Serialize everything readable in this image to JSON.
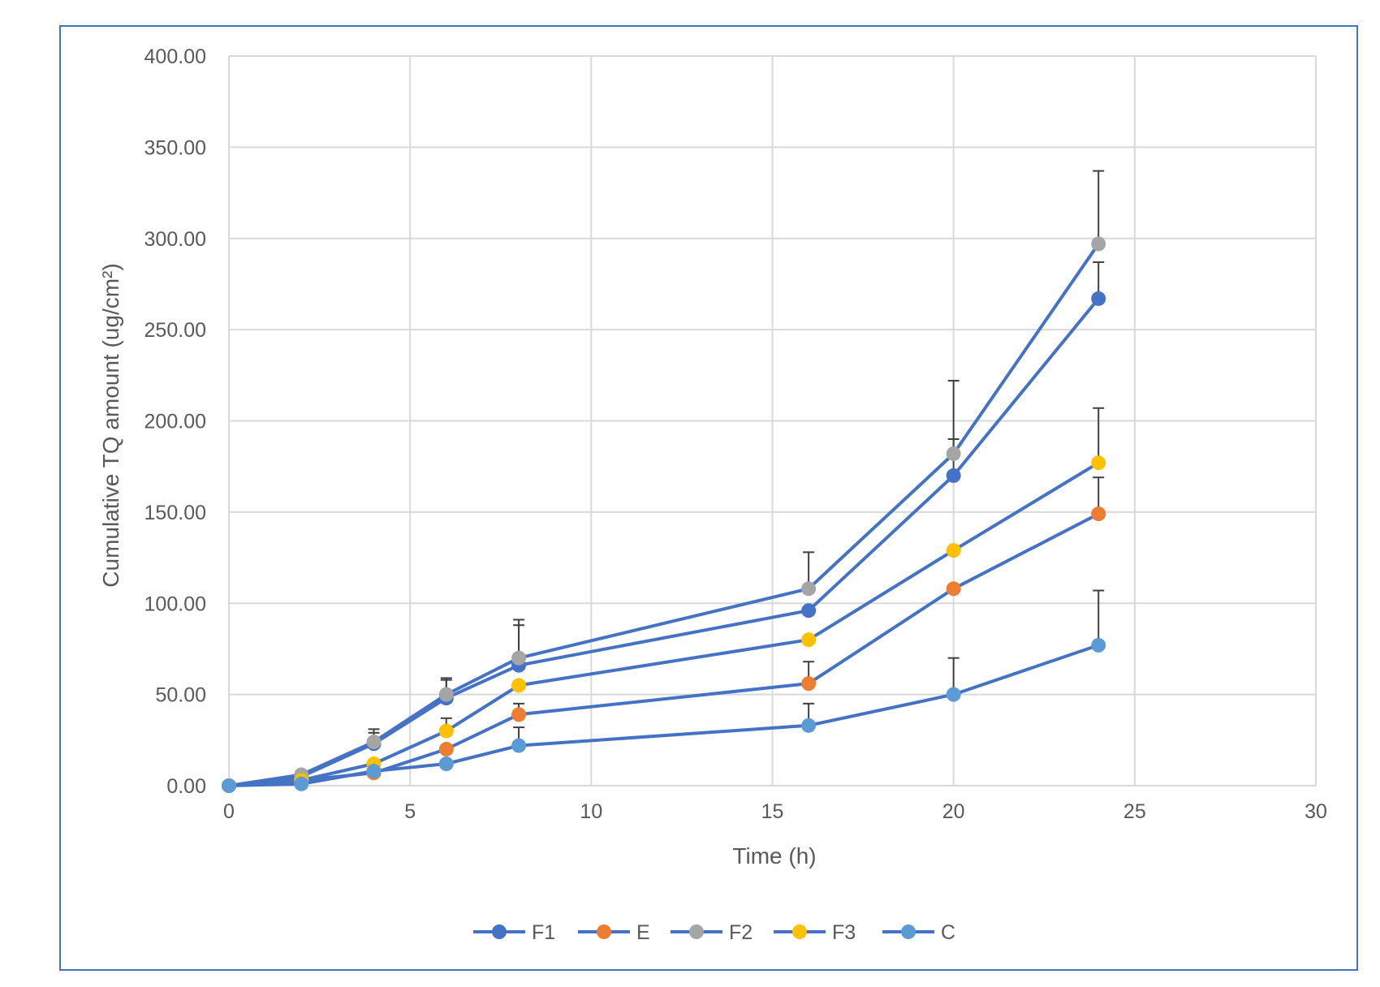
{
  "chart_data": {
    "type": "line",
    "title": "",
    "xlabel": "Time (h)",
    "ylabel": "Cumulative  TQ amount  (ug/cm²)",
    "xlim": [
      0,
      30
    ],
    "ylim": [
      0,
      400
    ],
    "x_ticks": [
      "0",
      "5",
      "10",
      "15",
      "20",
      "25",
      "30"
    ],
    "y_ticks": [
      "0.00",
      "50.00",
      "100.00",
      "150.00",
      "200.00",
      "250.00",
      "300.00",
      "350.00",
      "400.00"
    ],
    "grid": true,
    "legend_position": "bottom",
    "line_color": "#4472C4",
    "x": [
      0,
      2,
      4,
      6,
      8,
      16,
      20,
      24
    ],
    "series": [
      {
        "name": "F1",
        "color": "#4472C4",
        "values": [
          0,
          5,
          23,
          48,
          66,
          96,
          170,
          267
        ],
        "errors": [
          null,
          null,
          6,
          10,
          22,
          null,
          20,
          20
        ]
      },
      {
        "name": "E",
        "color": "#ED7D31",
        "values": [
          0,
          3,
          7,
          20,
          39,
          56,
          108,
          149
        ],
        "errors": [
          null,
          null,
          null,
          null,
          6,
          12,
          null,
          20
        ]
      },
      {
        "name": "F2",
        "color": "#A5A5A5",
        "values": [
          0,
          6,
          24,
          50,
          70,
          108,
          182,
          297
        ],
        "errors": [
          null,
          null,
          7,
          9,
          21,
          20,
          40,
          40
        ]
      },
      {
        "name": "F3",
        "color": "#FFC000",
        "values": [
          0,
          3,
          12,
          30,
          55,
          80,
          129,
          177
        ],
        "errors": [
          null,
          null,
          null,
          7,
          null,
          null,
          null,
          30
        ]
      },
      {
        "name": "C",
        "color": "#5B9BD5",
        "values": [
          0,
          1,
          8,
          12,
          22,
          33,
          50,
          77
        ],
        "errors": [
          null,
          null,
          null,
          null,
          10,
          12,
          20,
          30
        ]
      }
    ]
  }
}
